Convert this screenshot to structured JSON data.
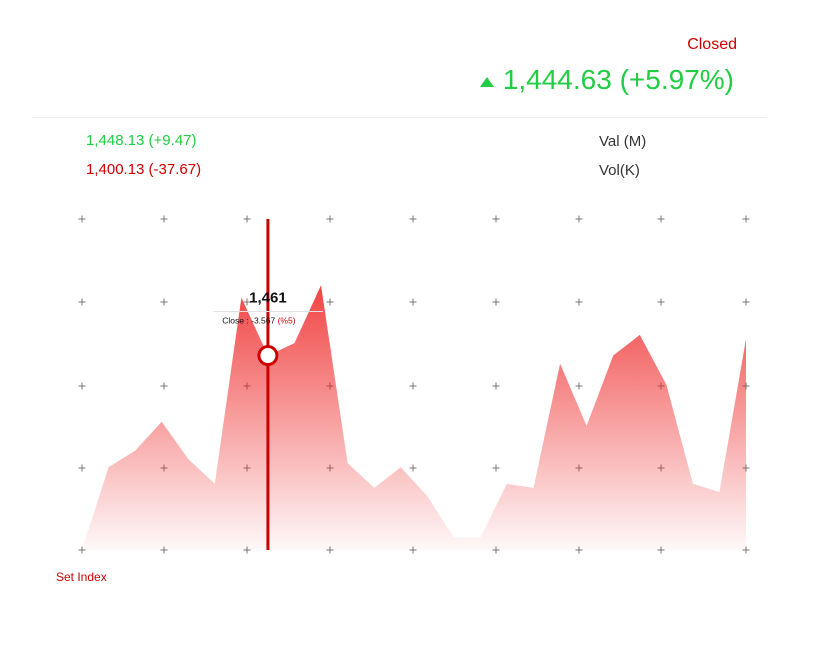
{
  "header": {
    "status": "Closed",
    "price": "1,444.63",
    "change": "(+5.97%)",
    "trend_icon": "triangle-up-icon"
  },
  "stats": {
    "high": "1,448.13 (+9.47)",
    "low": "1,400.13 (-37.67)",
    "val_label": "Val (M)",
    "vol_label": "Vol(K)"
  },
  "colors": {
    "up": "#22cc44",
    "down": "#cc0000",
    "area_top": "#ee2222"
  },
  "tooltip": {
    "value": "1,461",
    "label": "Close : ",
    "change": "-3.567",
    "percent": "(%5)",
    "index": 7
  },
  "chart_data": {
    "type": "area",
    "series": [
      {
        "values": [
          1400,
          1420,
          1424,
          1431,
          1422,
          1416,
          1461,
          1447,
          1450,
          1464,
          1421,
          1415,
          1420,
          1413,
          1403,
          1403,
          1416,
          1415,
          1445,
          1430,
          1447,
          1452,
          1440,
          1416,
          1414,
          1451
        ]
      }
    ],
    "xlabel": "Set Index",
    "ylim": [
      1400,
      1480
    ],
    "grid": true
  }
}
